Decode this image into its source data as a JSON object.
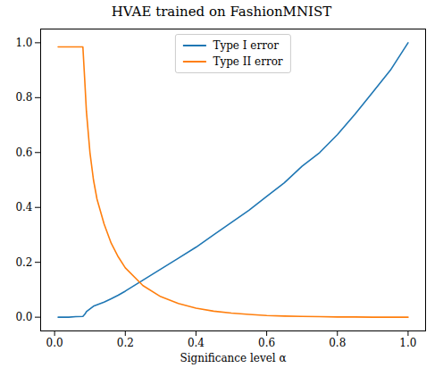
{
  "chart_data": {
    "type": "line",
    "title": "HVAE trained on FashionMNIST",
    "x_label": "Significance level α",
    "x": [
      0.01,
      0.02,
      0.04,
      0.06,
      0.08,
      0.085,
      0.09,
      0.1,
      0.11,
      0.12,
      0.14,
      0.16,
      0.18,
      0.2,
      0.25,
      0.3,
      0.35,
      0.4,
      0.45,
      0.5,
      0.55,
      0.6,
      0.65,
      0.7,
      0.75,
      0.8,
      0.85,
      0.9,
      0.95,
      1.0
    ],
    "series": [
      {
        "name": "Type I error",
        "color": "#1f77b4",
        "values": [
          0,
          0,
          0,
          0.002,
          0.003,
          0.01,
          0.02,
          0.03,
          0.04,
          0.045,
          0.055,
          0.067,
          0.08,
          0.095,
          0.135,
          0.175,
          0.215,
          0.255,
          0.3,
          0.345,
          0.39,
          0.44,
          0.49,
          0.55,
          0.6,
          0.665,
          0.74,
          0.82,
          0.9,
          1.0
        ]
      },
      {
        "name": "Type II error",
        "color": "#ff7f0e",
        "values": [
          0.985,
          0.985,
          0.985,
          0.985,
          0.985,
          0.87,
          0.75,
          0.6,
          0.5,
          0.43,
          0.34,
          0.27,
          0.22,
          0.18,
          0.115,
          0.075,
          0.05,
          0.033,
          0.022,
          0.015,
          0.01,
          0.006,
          0.004,
          0.003,
          0.002,
          0.001,
          0.001,
          0,
          0,
          0
        ]
      }
    ],
    "xlim": [
      -0.0395,
      1.0495
    ],
    "ylim": [
      -0.05,
      1.05
    ],
    "xticks": [
      {
        "value": 0,
        "label": "0.0"
      },
      0.2,
      0.4,
      0.6,
      0.8,
      {
        "value": 1,
        "label": "1.0"
      }
    ],
    "yticks": [
      {
        "value": 0,
        "label": "0.0"
      },
      0.2,
      0.4,
      0.6,
      0.8,
      {
        "value": 1,
        "label": "1.0"
      }
    ],
    "grid": false,
    "legend": "upper center"
  }
}
